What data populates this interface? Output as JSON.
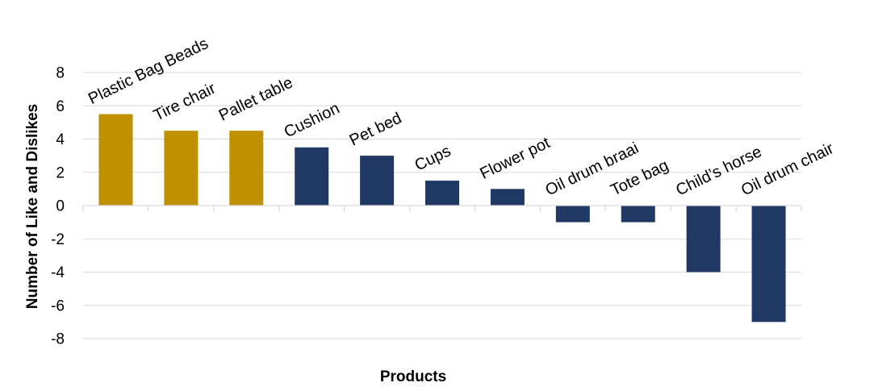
{
  "chart_data": {
    "type": "bar",
    "title": "",
    "xlabel": "Products",
    "ylabel": "Number of Like and Dislikes",
    "ylim": [
      -8,
      8
    ],
    "yticks": [
      8,
      6,
      4,
      2,
      0,
      -2,
      -4,
      -6,
      -8
    ],
    "ytick_labels": [
      "8",
      "6",
      "4",
      "2",
      "0",
      "-2",
      "-4",
      "-6",
      "-8"
    ],
    "grid": true,
    "legend": "none",
    "categories": [
      "Plastic Bag Beads",
      "Tire chair",
      "Pallet table",
      "Cushion",
      "Pet bed",
      "Cups",
      "Flower pot",
      "Oil drum braai",
      "Tote bag",
      "Child’s horse",
      "Oil drum chair"
    ],
    "values": [
      5.5,
      4.5,
      4.5,
      3.5,
      3.0,
      1.5,
      1.0,
      -1.0,
      -1.0,
      -4.0,
      -7.0
    ],
    "bar_colors": [
      "#BF9000",
      "#BF9000",
      "#BF9000",
      "#203864",
      "#203864",
      "#203864",
      "#203864",
      "#203864",
      "#203864",
      "#203864",
      "#203864"
    ]
  },
  "style": {
    "gridline_color": "#D9D9D9",
    "axis_color": "#D9D9D9",
    "highlight_color": "#BF9000",
    "base_color": "#203864"
  }
}
